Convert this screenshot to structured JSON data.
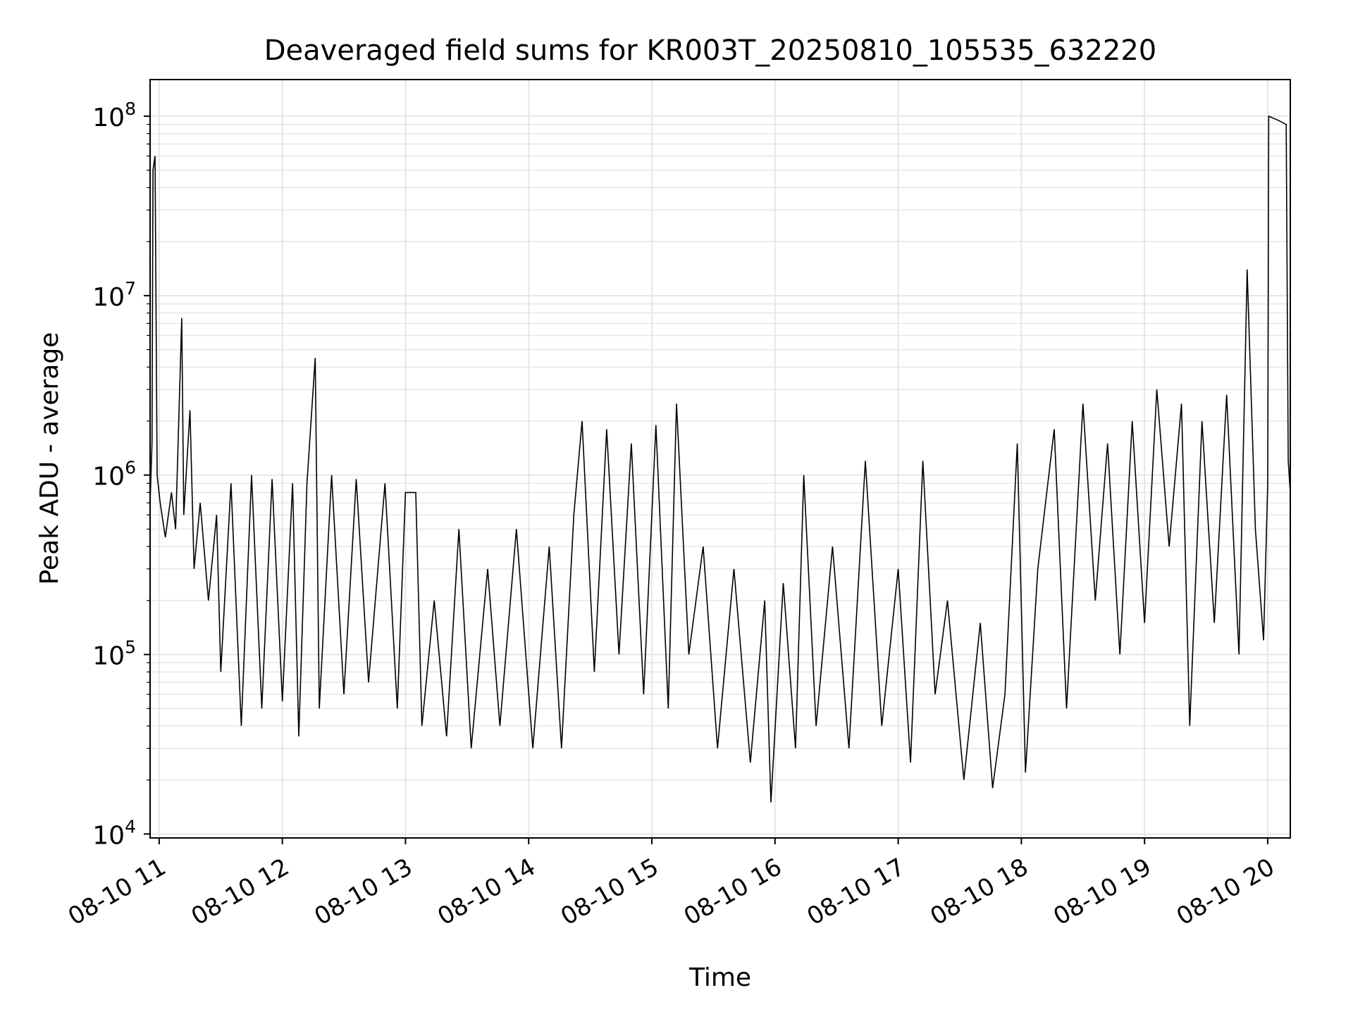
{
  "chart_data": {
    "type": "line",
    "title": "Deaveraged field sums for KR003T_20250810_105535_632220",
    "xlabel": "Time",
    "ylabel": "Peak ADU - average",
    "yscale": "log",
    "ylim": [
      9500,
      160000000
    ],
    "xlim": [
      "2025-08-10 10:55:35",
      "2025-08-10 20:11:00"
    ],
    "grid": true,
    "line_color": "#000000",
    "grid_color": "#e6e6e6",
    "y_ticks": [
      {
        "base": "10",
        "exp": "4",
        "value": 10000
      },
      {
        "base": "10",
        "exp": "5",
        "value": 100000
      },
      {
        "base": "10",
        "exp": "6",
        "value": 1000000
      },
      {
        "base": "10",
        "exp": "7",
        "value": 10000000
      },
      {
        "base": "10",
        "exp": "8",
        "value": 100000000
      }
    ],
    "x_ticks": [
      {
        "label": "08-10 11",
        "time": "2025-08-10 11:00"
      },
      {
        "label": "08-10 12",
        "time": "2025-08-10 12:00"
      },
      {
        "label": "08-10 13",
        "time": "2025-08-10 13:00"
      },
      {
        "label": "08-10 14",
        "time": "2025-08-10 14:00"
      },
      {
        "label": "08-10 15",
        "time": "2025-08-10 15:00"
      },
      {
        "label": "08-10 16",
        "time": "2025-08-10 16:00"
      },
      {
        "label": "08-10 17",
        "time": "2025-08-10 17:00"
      },
      {
        "label": "08-10 18",
        "time": "2025-08-10 18:00"
      },
      {
        "label": "08-10 19",
        "time": "2025-08-10 19:00"
      },
      {
        "label": "08-10 20",
        "time": "2025-08-10 20:00"
      }
    ],
    "series": [
      {
        "values": [
          [
            "2025-08-10 10:55:35",
            700000
          ],
          [
            "2025-08-10 10:56:30",
            1500000
          ],
          [
            "2025-08-10 10:57:00",
            50000000
          ],
          [
            "2025-08-10 10:58:00",
            60000000
          ],
          [
            "2025-08-10 10:59:00",
            1000000
          ],
          [
            "2025-08-10 11:00:30",
            700000
          ],
          [
            "2025-08-10 11:03:00",
            450000
          ],
          [
            "2025-08-10 11:06:00",
            800000
          ],
          [
            "2025-08-10 11:08:00",
            500000
          ],
          [
            "2025-08-10 11:11:00",
            7500000
          ],
          [
            "2025-08-10 11:12:00",
            600000
          ],
          [
            "2025-08-10 11:15:00",
            2300000
          ],
          [
            "2025-08-10 11:17:00",
            300000
          ],
          [
            "2025-08-10 11:20:00",
            700000
          ],
          [
            "2025-08-10 11:24:00",
            200000
          ],
          [
            "2025-08-10 11:28:00",
            600000
          ],
          [
            "2025-08-10 11:30:00",
            80000
          ],
          [
            "2025-08-10 11:35:00",
            900000
          ],
          [
            "2025-08-10 11:40:00",
            40000
          ],
          [
            "2025-08-10 11:45:00",
            1000000
          ],
          [
            "2025-08-10 11:50:00",
            50000
          ],
          [
            "2025-08-10 11:55:00",
            950000
          ],
          [
            "2025-08-10 12:00:00",
            55000
          ],
          [
            "2025-08-10 12:05:00",
            900000
          ],
          [
            "2025-08-10 12:08:00",
            35000
          ],
          [
            "2025-08-10 12:12:00",
            900000
          ],
          [
            "2025-08-10 12:16:00",
            4500000
          ],
          [
            "2025-08-10 12:18:00",
            50000
          ],
          [
            "2025-08-10 12:24:00",
            1000000
          ],
          [
            "2025-08-10 12:30:00",
            60000
          ],
          [
            "2025-08-10 12:36:00",
            950000
          ],
          [
            "2025-08-10 12:42:00",
            70000
          ],
          [
            "2025-08-10 12:50:00",
            900000
          ],
          [
            "2025-08-10 12:56:00",
            50000
          ],
          [
            "2025-08-10 13:00:00",
            800000
          ],
          [
            "2025-08-10 13:05:00",
            800000
          ],
          [
            "2025-08-10 13:08:00",
            40000
          ],
          [
            "2025-08-10 13:14:00",
            200000
          ],
          [
            "2025-08-10 13:20:00",
            35000
          ],
          [
            "2025-08-10 13:26:00",
            500000
          ],
          [
            "2025-08-10 13:32:00",
            30000
          ],
          [
            "2025-08-10 13:40:00",
            300000
          ],
          [
            "2025-08-10 13:46:00",
            40000
          ],
          [
            "2025-08-10 13:54:00",
            500000
          ],
          [
            "2025-08-10 14:02:00",
            30000
          ],
          [
            "2025-08-10 14:10:00",
            400000
          ],
          [
            "2025-08-10 14:16:00",
            30000
          ],
          [
            "2025-08-10 14:22:00",
            600000
          ],
          [
            "2025-08-10 14:26:00",
            2000000
          ],
          [
            "2025-08-10 14:32:00",
            80000
          ],
          [
            "2025-08-10 14:38:00",
            1800000
          ],
          [
            "2025-08-10 14:44:00",
            100000
          ],
          [
            "2025-08-10 14:50:00",
            1500000
          ],
          [
            "2025-08-10 14:56:00",
            60000
          ],
          [
            "2025-08-10 15:02:00",
            1900000
          ],
          [
            "2025-08-10 15:08:00",
            50000
          ],
          [
            "2025-08-10 15:12:00",
            2500000
          ],
          [
            "2025-08-10 15:18:00",
            100000
          ],
          [
            "2025-08-10 15:25:00",
            400000
          ],
          [
            "2025-08-10 15:32:00",
            30000
          ],
          [
            "2025-08-10 15:40:00",
            300000
          ],
          [
            "2025-08-10 15:48:00",
            25000
          ],
          [
            "2025-08-10 15:55:00",
            200000
          ],
          [
            "2025-08-10 15:58:00",
            15000
          ],
          [
            "2025-08-10 16:04:00",
            250000
          ],
          [
            "2025-08-10 16:10:00",
            30000
          ],
          [
            "2025-08-10 16:14:00",
            1000000
          ],
          [
            "2025-08-10 16:20:00",
            40000
          ],
          [
            "2025-08-10 16:28:00",
            400000
          ],
          [
            "2025-08-10 16:36:00",
            30000
          ],
          [
            "2025-08-10 16:44:00",
            1200000
          ],
          [
            "2025-08-10 16:52:00",
            40000
          ],
          [
            "2025-08-10 17:00:00",
            300000
          ],
          [
            "2025-08-10 17:06:00",
            25000
          ],
          [
            "2025-08-10 17:12:00",
            1200000
          ],
          [
            "2025-08-10 17:18:00",
            60000
          ],
          [
            "2025-08-10 17:24:00",
            200000
          ],
          [
            "2025-08-10 17:32:00",
            20000
          ],
          [
            "2025-08-10 17:40:00",
            150000
          ],
          [
            "2025-08-10 17:46:00",
            18000
          ],
          [
            "2025-08-10 17:52:00",
            60000
          ],
          [
            "2025-08-10 17:58:00",
            1500000
          ],
          [
            "2025-08-10 18:02:00",
            22000
          ],
          [
            "2025-08-10 18:08:00",
            300000
          ],
          [
            "2025-08-10 18:16:00",
            1800000
          ],
          [
            "2025-08-10 18:22:00",
            50000
          ],
          [
            "2025-08-10 18:30:00",
            2500000
          ],
          [
            "2025-08-10 18:36:00",
            200000
          ],
          [
            "2025-08-10 18:42:00",
            1500000
          ],
          [
            "2025-08-10 18:48:00",
            100000
          ],
          [
            "2025-08-10 18:54:00",
            2000000
          ],
          [
            "2025-08-10 19:00:00",
            150000
          ],
          [
            "2025-08-10 19:06:00",
            3000000
          ],
          [
            "2025-08-10 19:12:00",
            400000
          ],
          [
            "2025-08-10 19:18:00",
            2500000
          ],
          [
            "2025-08-10 19:22:00",
            40000
          ],
          [
            "2025-08-10 19:28:00",
            2000000
          ],
          [
            "2025-08-10 19:34:00",
            150000
          ],
          [
            "2025-08-10 19:40:00",
            2800000
          ],
          [
            "2025-08-10 19:46:00",
            100000
          ],
          [
            "2025-08-10 19:50:00",
            14000000
          ],
          [
            "2025-08-10 19:54:00",
            500000
          ],
          [
            "2025-08-10 19:58:00",
            120000
          ],
          [
            "2025-08-10 20:00:00",
            900000
          ],
          [
            "2025-08-10 20:00:30",
            100000000
          ],
          [
            "2025-08-10 20:05:00",
            95000000
          ],
          [
            "2025-08-10 20:09:00",
            90000000
          ],
          [
            "2025-08-10 20:10:00",
            1200000
          ],
          [
            "2025-08-10 20:11:00",
            800000
          ]
        ]
      }
    ]
  }
}
